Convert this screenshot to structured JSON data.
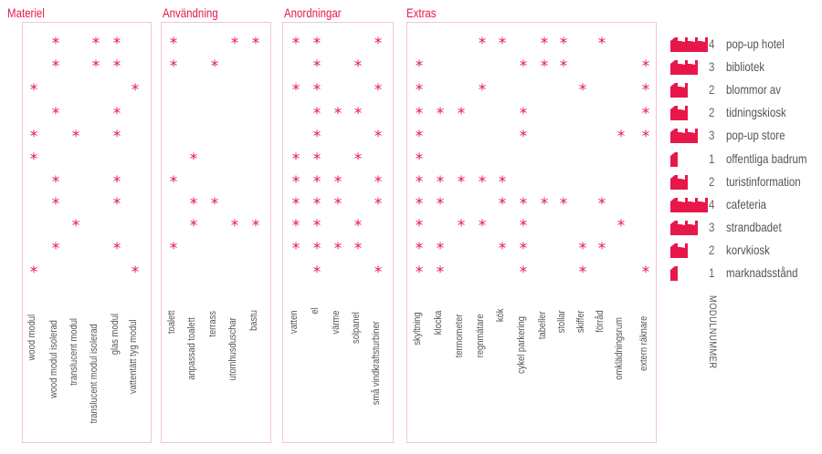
{
  "accent_color": "#e8174a",
  "star_glyph": "*",
  "groups": [
    {
      "title": "Materiel",
      "columns": [
        "wood modul",
        "wood modul isolerad",
        "translucent modul",
        "translucent modul isolerad",
        "glas modul",
        "vattentätt tyg modul"
      ],
      "rows": [
        [
          0,
          1,
          0,
          1,
          1,
          0
        ],
        [
          0,
          1,
          0,
          1,
          1,
          0
        ],
        [
          1,
          0,
          0,
          0,
          0,
          1
        ],
        [
          0,
          1,
          0,
          0,
          1,
          0
        ],
        [
          1,
          0,
          1,
          0,
          1,
          0
        ],
        [
          1,
          0,
          0,
          0,
          0,
          0
        ],
        [
          0,
          1,
          0,
          0,
          1,
          0
        ],
        [
          0,
          1,
          0,
          0,
          1,
          0
        ],
        [
          0,
          0,
          1,
          0,
          0,
          0
        ],
        [
          0,
          1,
          0,
          0,
          1,
          0
        ],
        [
          1,
          0,
          0,
          0,
          0,
          1
        ]
      ]
    },
    {
      "title": "Användning",
      "columns": [
        "toalett",
        "anpassad toalett",
        "terrass",
        "utomhusduschar",
        "bastu"
      ],
      "rows": [
        [
          1,
          0,
          0,
          1,
          1
        ],
        [
          1,
          0,
          1,
          0,
          0
        ],
        [
          0,
          0,
          0,
          0,
          0
        ],
        [
          0,
          0,
          0,
          0,
          0
        ],
        [
          0,
          0,
          0,
          0,
          0
        ],
        [
          0,
          1,
          0,
          0,
          0
        ],
        [
          1,
          0,
          0,
          0,
          0
        ],
        [
          0,
          1,
          1,
          0,
          0
        ],
        [
          0,
          1,
          0,
          1,
          1
        ],
        [
          1,
          0,
          0,
          0,
          0
        ],
        [
          0,
          0,
          0,
          0,
          0
        ]
      ]
    },
    {
      "title": "Anordningar",
      "columns": [
        "vatten",
        "el",
        "värme",
        "solpanel",
        "små vindkraftsturbiner"
      ],
      "rows": [
        [
          1,
          1,
          0,
          0,
          1
        ],
        [
          0,
          1,
          0,
          1,
          0
        ],
        [
          1,
          1,
          0,
          0,
          1
        ],
        [
          0,
          1,
          1,
          1,
          0
        ],
        [
          0,
          1,
          0,
          0,
          1
        ],
        [
          1,
          1,
          0,
          1,
          0
        ],
        [
          1,
          1,
          1,
          0,
          1
        ],
        [
          1,
          1,
          1,
          0,
          1
        ],
        [
          1,
          1,
          0,
          1,
          0
        ],
        [
          1,
          1,
          1,
          1,
          0
        ],
        [
          0,
          1,
          0,
          0,
          1
        ]
      ]
    },
    {
      "title": "Extras",
      "columns": [
        "skyltning",
        "klocka",
        "termometer",
        "regnmätare",
        "kök",
        "cykel parkering",
        "tabeller",
        "stollar",
        "skiffer",
        "förråd",
        "omklädningsrum",
        "extern räknare"
      ],
      "rows": [
        [
          0,
          0,
          0,
          1,
          1,
          0,
          1,
          1,
          0,
          1,
          0,
          0
        ],
        [
          1,
          0,
          0,
          0,
          0,
          1,
          1,
          1,
          0,
          0,
          0,
          1
        ],
        [
          1,
          0,
          0,
          1,
          0,
          0,
          0,
          0,
          1,
          0,
          0,
          1
        ],
        [
          1,
          1,
          1,
          0,
          0,
          1,
          0,
          0,
          0,
          0,
          0,
          1
        ],
        [
          1,
          0,
          0,
          0,
          0,
          1,
          0,
          0,
          0,
          0,
          1,
          1
        ],
        [
          1,
          0,
          0,
          0,
          0,
          0,
          0,
          0,
          0,
          0,
          0,
          0
        ],
        [
          1,
          1,
          1,
          1,
          1,
          0,
          0,
          0,
          0,
          0,
          0,
          0
        ],
        [
          1,
          1,
          0,
          0,
          1,
          1,
          1,
          1,
          0,
          1,
          0,
          0
        ],
        [
          1,
          0,
          1,
          1,
          0,
          1,
          0,
          0,
          0,
          0,
          1,
          0
        ],
        [
          1,
          1,
          0,
          0,
          1,
          1,
          0,
          0,
          1,
          1,
          0,
          0
        ],
        [
          1,
          1,
          0,
          0,
          0,
          1,
          0,
          0,
          1,
          0,
          0,
          1
        ]
      ]
    }
  ],
  "legend": [
    {
      "module_count": "4",
      "label": "pop-up hotel"
    },
    {
      "module_count": "3",
      "label": "bibliotek"
    },
    {
      "module_count": "2",
      "label": "blommor av"
    },
    {
      "module_count": "2",
      "label": "tidningskiosk"
    },
    {
      "module_count": "3",
      "label": "pop-up store"
    },
    {
      "module_count": "1",
      "label": "offentliga badrum"
    },
    {
      "module_count": "2",
      "label": "turistinformation"
    },
    {
      "module_count": "4",
      "label": "cafeteria"
    },
    {
      "module_count": "3",
      "label": "strandbadet"
    },
    {
      "module_count": "2",
      "label": "korvkiosk"
    },
    {
      "module_count": "1",
      "label": "marknadsstånd"
    }
  ],
  "axis_label": "MODULNUMMER"
}
